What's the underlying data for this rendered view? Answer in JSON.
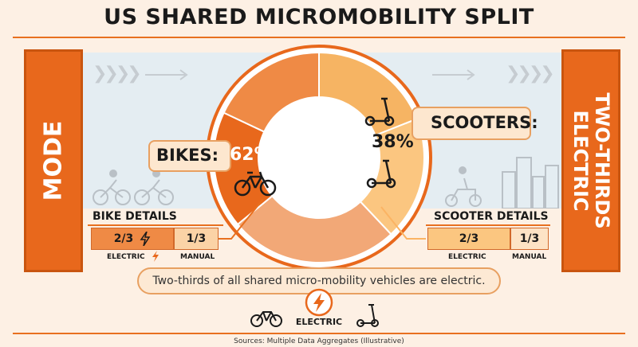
{
  "title": "US SHARED MICROMOBILITY SPLIT",
  "side_left": "MODE",
  "side_right_line1": "TWO-THIRDS",
  "side_right_line2": "ELECTRIC",
  "chart_data": {
    "type": "pie",
    "categories": [
      "BIKES",
      "SCOOTERS"
    ],
    "values": [
      62,
      38
    ],
    "units": "%",
    "labels": {
      "bikes": "BIKES:",
      "scooters": "SCOOTERS:"
    },
    "value_labels": {
      "bikes": "62%",
      "scooters": "38%"
    }
  },
  "bike_details": {
    "title": "BIKE DETAILS",
    "electric_share": "2/3",
    "manual_share": "1/3",
    "electric_caption": "ELECTRIC",
    "manual_caption": "MANUAL"
  },
  "scooter_details": {
    "title": "SCOOTER DETAILS",
    "electric_share": "2/3",
    "manual_share": "1/3",
    "electric_caption": "ELECTRIC",
    "manual_caption": "MANUAL"
  },
  "summary": "Two-thirds of all shared micro-mobility vehicles are electric.",
  "bottom_label": "ELECTRIC",
  "source": "Sources: Multiple Data Aggregates (Illustrative)",
  "colors": {
    "bikes": "#e8681c",
    "bikes_light": "#f2a877",
    "scooters": "#fbc680",
    "accent": "#e8701f"
  }
}
